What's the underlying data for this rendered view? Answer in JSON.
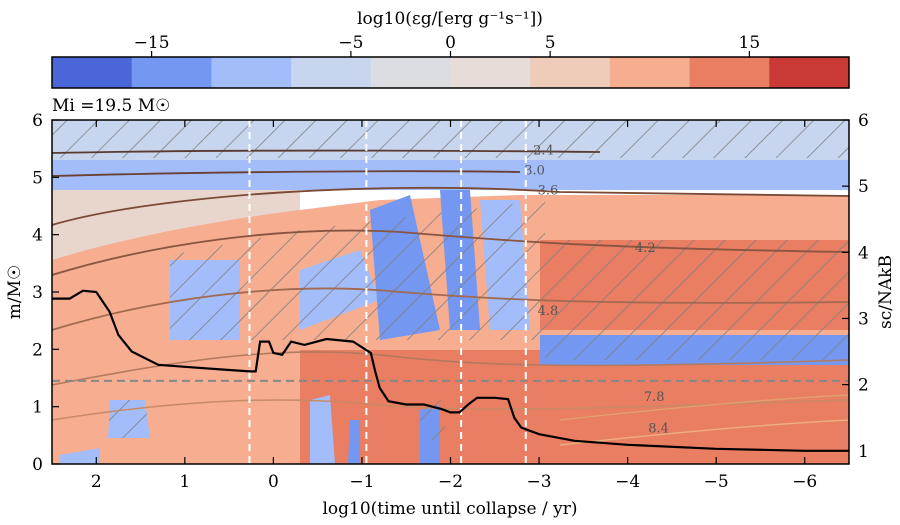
{
  "chart_data": {
    "type": "heatmap",
    "colorbar": {
      "label": "log10(εg/[erg g⁻¹s⁻¹])",
      "ticks": [
        {
          "value": -15,
          "label": "−15"
        },
        {
          "value": -5,
          "label": "−5"
        },
        {
          "value": 0,
          "label": "0"
        },
        {
          "value": 5,
          "label": "5"
        },
        {
          "value": 15,
          "label": "15"
        }
      ],
      "range": [
        -20,
        20
      ],
      "colors": [
        "#4a66d9",
        "#7497f1",
        "#a3bdfa",
        "#c8d5ee",
        "#dcdde2",
        "#e8dcd8",
        "#efcbb9",
        "#f6ad90",
        "#e97e62",
        "#c93a37"
      ]
    },
    "annotation": "Mi =19.5 M☉",
    "xlabel": "log10(time until collapse / yr)",
    "ylabel_left": "m/M☉",
    "ylabel_right": "sc/NAkB",
    "xlim": [
      2.5,
      -6.5
    ],
    "ylim_left": [
      0,
      6
    ],
    "ylim_right": [
      0.8,
      6
    ],
    "x_ticks": [
      {
        "value": 2,
        "label": "2"
      },
      {
        "value": 1,
        "label": "1"
      },
      {
        "value": 0,
        "label": "0"
      },
      {
        "value": -1,
        "label": "−1"
      },
      {
        "value": -2,
        "label": "−2"
      },
      {
        "value": -3,
        "label": "−3"
      },
      {
        "value": -4,
        "label": "−4"
      },
      {
        "value": -5,
        "label": "−5"
      },
      {
        "value": -6,
        "label": "−6"
      }
    ],
    "y_ticks_left": [
      {
        "value": 0,
        "label": "0"
      },
      {
        "value": 1,
        "label": "1"
      },
      {
        "value": 2,
        "label": "2"
      },
      {
        "value": 3,
        "label": "3"
      },
      {
        "value": 4,
        "label": "4"
      },
      {
        "value": 5,
        "label": "5"
      },
      {
        "value": 6,
        "label": "6"
      }
    ],
    "y_ticks_right": [
      {
        "value": 1,
        "label": "1"
      },
      {
        "value": 2,
        "label": "2"
      },
      {
        "value": 3,
        "label": "3"
      },
      {
        "value": 4,
        "label": "4"
      },
      {
        "value": 5,
        "label": "5"
      },
      {
        "value": 6,
        "label": "6"
      }
    ],
    "vlines": [
      0.27,
      -1.05,
      -2.12,
      -2.85
    ],
    "hline": 1.45,
    "contour_labels": [
      {
        "x": -3.05,
        "y": 5.4,
        "label": "2.4"
      },
      {
        "x": -2.95,
        "y": 5.05,
        "label": "3.0"
      },
      {
        "x": -3.1,
        "y": 4.7,
        "label": "3.6"
      },
      {
        "x": -4.2,
        "y": 3.7,
        "label": "4.2"
      },
      {
        "x": -3.1,
        "y": 2.6,
        "label": "4.8"
      },
      {
        "x": -4.3,
        "y": 1.1,
        "label": "7.8"
      },
      {
        "x": -4.35,
        "y": 0.55,
        "label": "8.4"
      }
    ],
    "sc_curve": {
      "x": [
        2.5,
        2.3,
        2.15,
        2.0,
        1.85,
        1.75,
        1.6,
        1.3,
        1.0,
        0.6,
        0.27,
        0.2,
        0.15,
        0.05,
        0.0,
        -0.1,
        -0.2,
        -0.35,
        -0.6,
        -0.9,
        -1.1,
        -1.15,
        -1.2,
        -1.3,
        -1.5,
        -1.7,
        -1.9,
        -2.0,
        -2.1,
        -2.2,
        -2.3,
        -2.5,
        -2.65,
        -2.72,
        -2.8,
        -3.0,
        -3.4,
        -4.0,
        -5.0,
        -6.0,
        -6.5
      ],
      "y": [
        3.3,
        3.3,
        3.42,
        3.4,
        3.1,
        2.75,
        2.5,
        2.3,
        2.27,
        2.23,
        2.2,
        2.2,
        2.65,
        2.65,
        2.48,
        2.45,
        2.65,
        2.6,
        2.69,
        2.65,
        2.48,
        2.2,
        1.95,
        1.75,
        1.7,
        1.7,
        1.63,
        1.58,
        1.58,
        1.7,
        1.8,
        1.8,
        1.78,
        1.5,
        1.35,
        1.25,
        1.15,
        1.09,
        1.03,
        1.0,
        1.0
      ]
    }
  }
}
